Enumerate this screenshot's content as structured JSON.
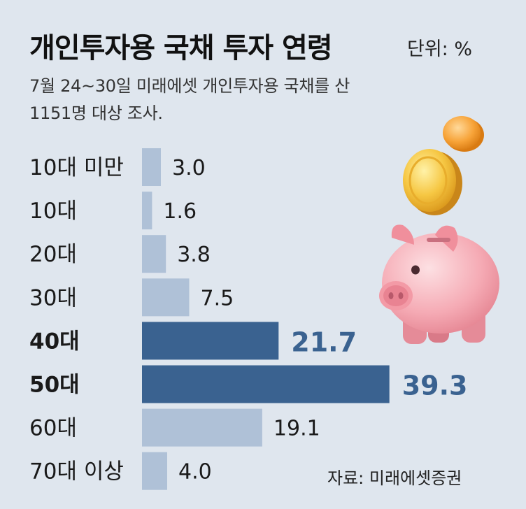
{
  "header": {
    "title": "개인투자용 국채 투자 연령",
    "unit": "단위: %",
    "subtitle_line1": "7월 24~30일 미래에셋 개인투자용 국채를 산",
    "subtitle_line2": "1151명 대상 조사."
  },
  "footer": {
    "source": "자료: 미래에셋증권"
  },
  "colors": {
    "bar_light": "#afc1d7",
    "bar_highlight": "#3a6290",
    "label_highlight": "#3a6290",
    "background": "#dfe6ee"
  },
  "illustration": {
    "icon": "piggy-bank-with-coins-icon"
  },
  "chart_data": {
    "type": "bar",
    "orientation": "horizontal",
    "categories": [
      "10대 미만",
      "10대",
      "20대",
      "30대",
      "40대",
      "50대",
      "60대",
      "70대 이상"
    ],
    "values": [
      3.0,
      1.6,
      3.8,
      7.5,
      21.7,
      39.3,
      19.1,
      4.0
    ],
    "value_labels": [
      "3.0",
      "1.6",
      "3.8",
      "7.5",
      "21.7",
      "39.3",
      "19.1",
      "4.0"
    ],
    "highlighted": [
      false,
      false,
      false,
      false,
      true,
      true,
      false,
      false
    ],
    "xlim": [
      0,
      40
    ],
    "grid": false,
    "title": "개인투자용 국채 투자 연령",
    "xlabel": "",
    "ylabel": ""
  }
}
